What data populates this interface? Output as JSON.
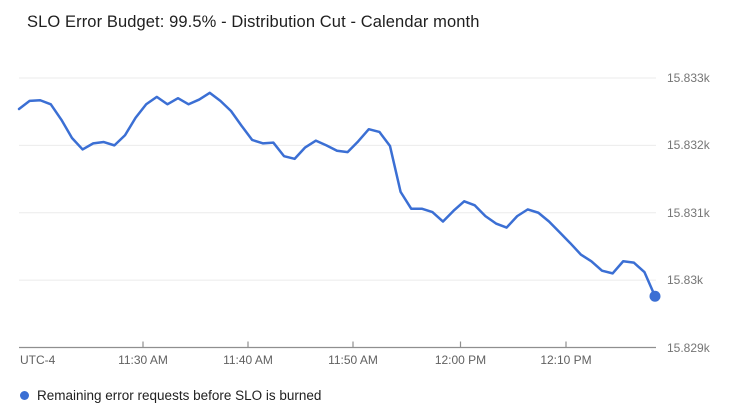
{
  "header": {
    "title": "SLO Error Budget: 99.5% - Distribution Cut - Calendar month"
  },
  "axes": {
    "utc_label": "UTC-4",
    "x_tick_labels": [
      "11:30 AM",
      "11:40 AM",
      "11:50 AM",
      "12:00 PM",
      "12:10 PM"
    ],
    "y_tick_labels": [
      "15.833k",
      "15.832k",
      "15.831k",
      "15.83k",
      "15.829k"
    ]
  },
  "legend": {
    "label": "Remaining error requests before SLO is burned"
  },
  "colors": {
    "series_blue": "#3b6fd4",
    "gridline": "#ebebeb",
    "axis_line": "#8f8f8f",
    "title_text": "#1f1f1f",
    "tick_text": "#757575"
  },
  "chart_data": {
    "type": "line",
    "title": "SLO Error Budget: 99.5% - Distribution Cut - Calendar month",
    "xlabel": "",
    "ylabel": "",
    "timezone_label": "UTC-4",
    "x_tick_labels": [
      "11:30 AM",
      "11:40 AM",
      "11:50 AM",
      "12:00 PM",
      "12:10 PM"
    ],
    "y_tick_labels": [
      "15.833k",
      "15.832k",
      "15.831k",
      "15.83k",
      "15.829k"
    ],
    "y_axis_values": [
      15833,
      15832,
      15831,
      15830,
      15829
    ],
    "ylim": [
      15829,
      15833
    ],
    "grid": true,
    "legend_position": "bottom-left",
    "end_point_marker": true,
    "series": [
      {
        "name": "Remaining error requests before SLO is burned",
        "color": "#3b6fd4",
        "x_times": [
          "11:18 AM",
          "11:19 AM",
          "11:20 AM",
          "11:21 AM",
          "11:22 AM",
          "11:23 AM",
          "11:24 AM",
          "11:25 AM",
          "11:26 AM",
          "11:27 AM",
          "11:28 AM",
          "11:29 AM",
          "11:30 AM",
          "11:31 AM",
          "11:32 AM",
          "11:33 AM",
          "11:34 AM",
          "11:35 AM",
          "11:36 AM",
          "11:37 AM",
          "11:38 AM",
          "11:39 AM",
          "11:40 AM",
          "11:41 AM",
          "11:42 AM",
          "11:43 AM",
          "11:44 AM",
          "11:45 AM",
          "11:46 AM",
          "11:47 AM",
          "11:48 AM",
          "11:49 AM",
          "11:50 AM",
          "11:51 AM",
          "11:52 AM",
          "11:53 AM",
          "11:54 AM",
          "11:55 AM",
          "11:56 AM",
          "11:57 AM",
          "11:58 AM",
          "11:59 AM",
          "12:00 PM",
          "12:01 PM",
          "12:02 PM",
          "12:03 PM",
          "12:04 PM",
          "12:05 PM",
          "12:06 PM",
          "12:07 PM",
          "12:08 PM",
          "12:09 PM",
          "12:10 PM",
          "12:11 PM",
          "12:12 PM",
          "12:13 PM",
          "12:14 PM",
          "12:15 PM",
          "12:16 PM",
          "12:17 PM",
          "12:18 PM"
        ],
        "values": [
          15832.54,
          15832.66,
          15832.67,
          15832.61,
          15832.38,
          15832.11,
          15831.94,
          15832.03,
          15832.05,
          15832.0,
          15832.15,
          15832.41,
          15832.61,
          15832.72,
          15832.61,
          15832.7,
          15832.61,
          15832.68,
          15832.78,
          15832.66,
          15832.51,
          15832.29,
          15832.08,
          15832.03,
          15832.04,
          15831.84,
          15831.8,
          15831.97,
          15832.07,
          15832.0,
          15831.92,
          15831.9,
          15832.06,
          15832.24,
          15832.2,
          15831.99,
          15831.31,
          15831.06,
          15831.06,
          15831.01,
          15830.87,
          15831.03,
          15831.17,
          15831.11,
          15830.95,
          15830.84,
          15830.78,
          15830.95,
          15831.05,
          15831.0,
          15830.87,
          15830.71,
          15830.55,
          15830.38,
          15830.28,
          15830.14,
          15830.1,
          15830.28,
          15830.26,
          15830.12,
          15829.76
        ]
      }
    ]
  }
}
